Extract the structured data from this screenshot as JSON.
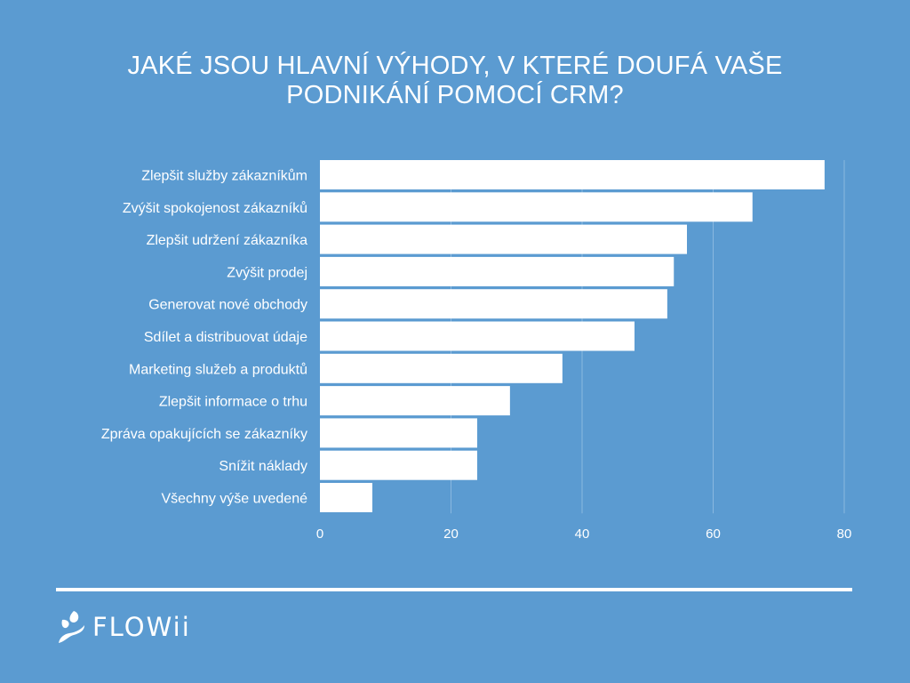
{
  "title_lines": [
    "JAKÉ JSOU HLAVNÍ VÝHODY, V KTERÉ DOUFÁ VAŠE",
    "PODNIKÁNÍ POMOCÍ CRM?"
  ],
  "colors": {
    "background": "#5b9bd1",
    "bar": "#ffffff",
    "text": "#ffffff",
    "gridline": "#8ab8e0"
  },
  "chart_data": {
    "type": "bar",
    "orientation": "horizontal",
    "categories": [
      "Zlepšit služby zákazníkům",
      "Zvýšit spokojenost zákazníků",
      "Zlepšit udržení zákazníka",
      "Zvýšit prodej",
      "Generovat nové obchody",
      "Sdílet a distribuovat údaje",
      "Marketing služeb a produktů",
      "Zlepšit informace o trhu",
      "Zpráva opakujících se zákazníky",
      "Snížit náklady",
      "Všechny výše uvedené"
    ],
    "values": [
      77,
      66,
      56,
      54,
      53,
      48,
      37,
      29,
      24,
      24,
      8
    ],
    "xlim": [
      0,
      80
    ],
    "xticks": [
      0,
      20,
      40,
      60,
      80
    ],
    "grid": true,
    "legend": "none"
  },
  "footer": {
    "brand": "FLOWii",
    "logo_icon": "flowii-logo-icon"
  }
}
